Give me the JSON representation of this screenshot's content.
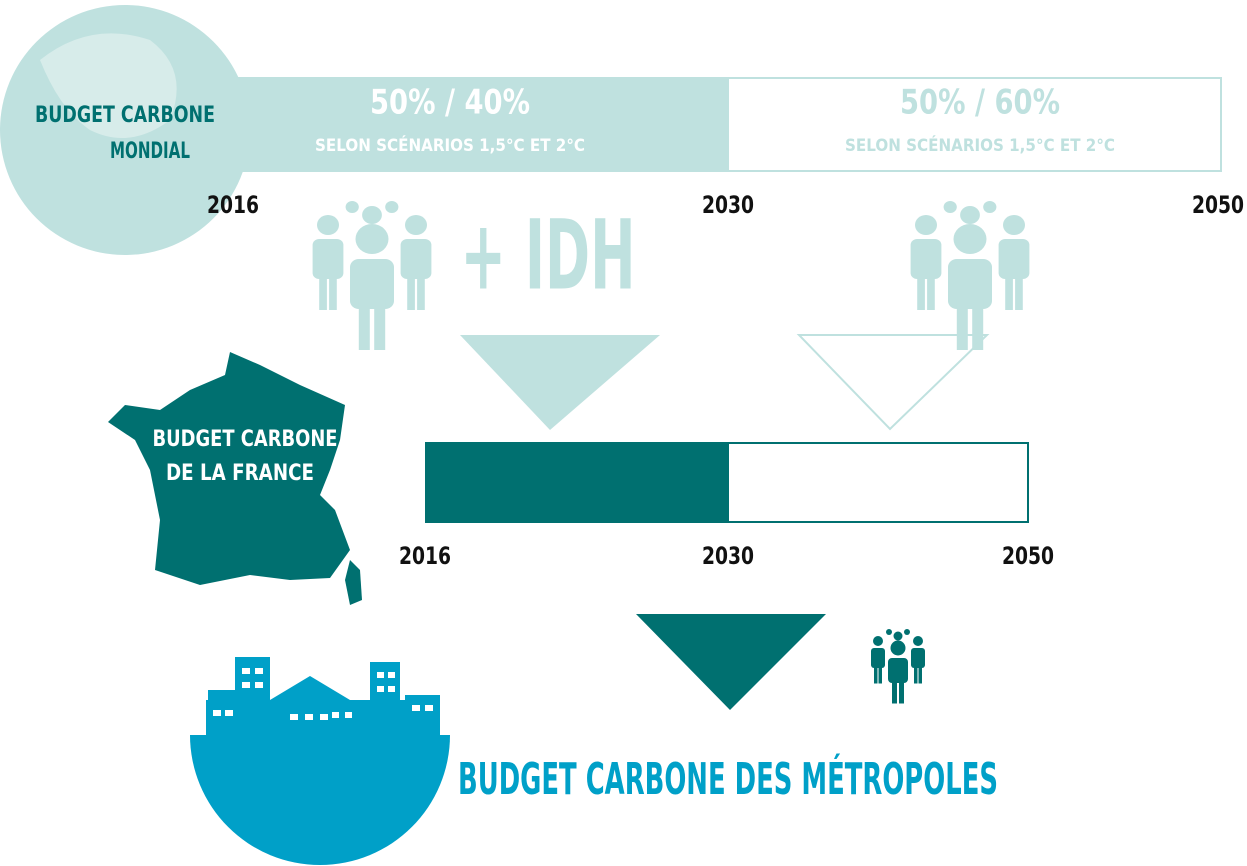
{
  "world": {
    "label": [
      "BUDGET CARBONE",
      "MONDIAL"
    ],
    "segments": [
      {
        "share": "50% / 40%",
        "note": "SELON SCÉNARIOS 1,5°C ET 2°C"
      },
      {
        "share": "50% / 60%",
        "note": "SELON SCÉNARIOS 1,5°C ET 2°C"
      }
    ],
    "years": [
      "2016",
      "2030",
      "2050"
    ]
  },
  "criteria": "+ IDH",
  "france": {
    "label": [
      "BUDGET CARBONE",
      "DE LA FRANCE"
    ],
    "years": [
      "2016",
      "2030",
      "2050"
    ]
  },
  "metropoles": {
    "label": "BUDGET CARBONE DES MÉTROPOLES"
  }
}
